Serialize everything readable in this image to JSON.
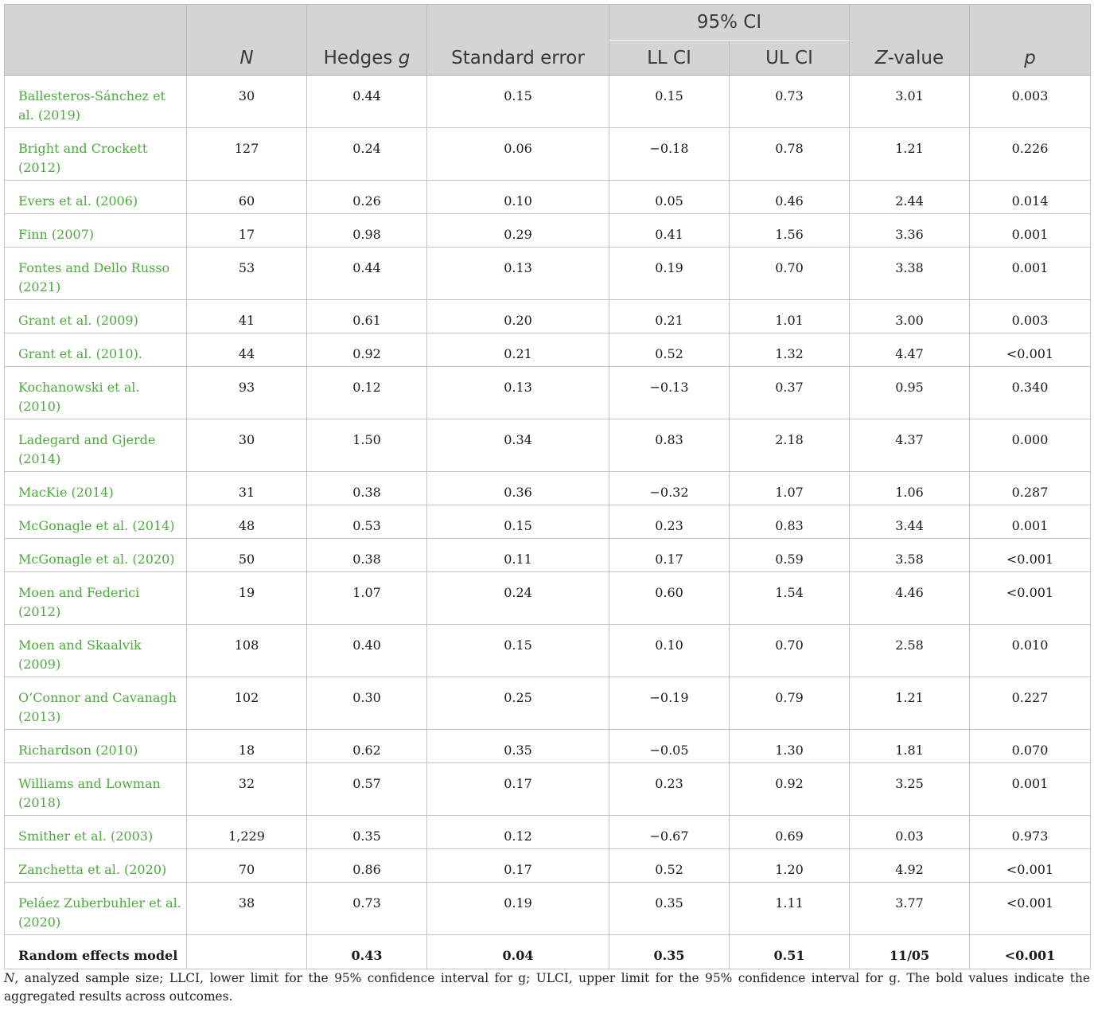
{
  "header": {
    "ci_group": "95% CI",
    "n": "N",
    "hedges_prefix": "Hedges ",
    "hedges_var": "g",
    "se": "Standard error",
    "ll": "LL CI",
    "ul": "UL CI",
    "z_var": "Z",
    "z_suffix": "-value",
    "p": "p"
  },
  "rows": [
    {
      "name_pre": "Ballesteros-Sánchez et al. (",
      "year": "2019",
      "name_post": ")",
      "n": "30",
      "g": "0.44",
      "se": "0.15",
      "ll": "0.15",
      "ul": "0.73",
      "z": "3.01",
      "p": "0.003"
    },
    {
      "name_pre": "Bright and Crockett (",
      "year": "2012",
      "name_post": ")",
      "n": "127",
      "g": "0.24",
      "se": "0.06",
      "ll": "−0.18",
      "ul": "0.78",
      "z": "1.21",
      "p": "0.226"
    },
    {
      "name_pre": "Evers et al. (",
      "year": "2006",
      "name_post": ")",
      "n": "60",
      "g": "0.26",
      "se": "0.10",
      "ll": "0.05",
      "ul": "0.46",
      "z": "2.44",
      "p": "0.014"
    },
    {
      "name_pre": "Finn (",
      "year": "2007",
      "name_post": ")",
      "n": "17",
      "g": "0.98",
      "se": "0.29",
      "ll": "0.41",
      "ul": "1.56",
      "z": "3.36",
      "p": "0.001"
    },
    {
      "name_pre": "Fontes and Dello Russo (",
      "year": "2021",
      "name_post": ")",
      "n": "53",
      "g": "0.44",
      "se": "0.13",
      "ll": "0.19",
      "ul": "0.70",
      "z": "3.38",
      "p": "0.001"
    },
    {
      "name_pre": "Grant et al. (",
      "year": "2009",
      "name_post": ")",
      "n": "41",
      "g": "0.61",
      "se": "0.20",
      "ll": "0.21",
      "ul": "1.01",
      "z": "3.00",
      "p": "0.003"
    },
    {
      "name_pre": "Grant et al. (",
      "year": "2010",
      "name_post": ").",
      "n": "44",
      "g": "0.92",
      "se": "0.21",
      "ll": "0.52",
      "ul": "1.32",
      "z": "4.47",
      "p": "<0.001"
    },
    {
      "name_pre": "Kochanowski et al. (",
      "year": "2010",
      "name_post": ")",
      "n": "93",
      "g": "0.12",
      "se": "0.13",
      "ll": "−0.13",
      "ul": "0.37",
      "z": "0.95",
      "p": "0.340"
    },
    {
      "name_pre": "Ladegard and Gjerde (",
      "year": "2014",
      "name_post": ")",
      "n": "30",
      "g": "1.50",
      "se": "0.34",
      "ll": "0.83",
      "ul": "2.18",
      "z": "4.37",
      "p": "0.000"
    },
    {
      "name_pre": "MacKie (",
      "year": "2014",
      "name_post": ")",
      "n": "31",
      "g": "0.38",
      "se": "0.36",
      "ll": "−0.32",
      "ul": "1.07",
      "z": "1.06",
      "p": "0.287"
    },
    {
      "name_pre": "McGonagle et al. (",
      "year": "2014",
      "name_post": ")",
      "n": "48",
      "g": "0.53",
      "se": "0.15",
      "ll": "0.23",
      "ul": "0.83",
      "z": "3.44",
      "p": "0.001"
    },
    {
      "name_pre": "McGonagle et al. (",
      "year": "2020",
      "name_post": ")",
      "n": "50",
      "g": "0.38",
      "se": "0.11",
      "ll": "0.17",
      "ul": "0.59",
      "z": "3.58",
      "p": "<0.001"
    },
    {
      "name_pre": "Moen and Federici (",
      "year": "2012",
      "name_post": ")",
      "n": "19",
      "g": "1.07",
      "se": "0.24",
      "ll": "0.60",
      "ul": "1.54",
      "z": "4.46",
      "p": "<0.001"
    },
    {
      "name_pre": "Moen and Skaalvik (",
      "year": "2009",
      "name_post": ")",
      "n": "108",
      "g": "0.40",
      "se": "0.15",
      "ll": "0.10",
      "ul": "0.70",
      "z": "2.58",
      "p": "0.010"
    },
    {
      "name_pre": "O’Connor and Cavanagh (",
      "year": "2013",
      "name_post": ")",
      "n": "102",
      "g": "0.30",
      "se": "0.25",
      "ll": "−0.19",
      "ul": "0.79",
      "z": "1.21",
      "p": "0.227"
    },
    {
      "name_pre": "Richardson (",
      "year": "2010",
      "name_post": ")",
      "n": "18",
      "g": "0.62",
      "se": "0.35",
      "ll": "−0.05",
      "ul": "1.30",
      "z": "1.81",
      "p": "0.070"
    },
    {
      "name_pre": "Williams and Lowman (",
      "year": "2018",
      "name_post": ")",
      "n": "32",
      "g": "0.57",
      "se": "0.17",
      "ll": "0.23",
      "ul": "0.92",
      "z": "3.25",
      "p": "0.001"
    },
    {
      "name_pre": "Smither et al. (",
      "year": "2003",
      "name_post": ")",
      "n": "1,229",
      "g": "0.35",
      "se": "0.12",
      "ll": "−0.67",
      "ul": "0.69",
      "z": "0.03",
      "p": "0.973"
    },
    {
      "name_pre": "Zanchetta et al. (",
      "year": "2020",
      "name_post": ")",
      "n": "70",
      "g": "0.86",
      "se": "0.17",
      "ll": "0.52",
      "ul": "1.20",
      "z": "4.92",
      "p": "<0.001"
    },
    {
      "name_pre": "Peláez Zuberbuhler et al. (",
      "year": "2020",
      "name_post": ")",
      "n": "38",
      "g": "0.73",
      "se": "0.19",
      "ll": "0.35",
      "ul": "1.11",
      "z": "3.77",
      "p": "<0.001"
    }
  ],
  "summary": {
    "name": "Random effects model",
    "n": "",
    "g": "0.43",
    "se": "0.04",
    "ll": "0.35",
    "ul": "0.51",
    "z": "11/05",
    "p": "<0.001"
  },
  "footnote": {
    "n_var": "N",
    "text": ", analyzed sample size; LLCI, lower limit for the 95% confidence interval for g; ULCI, upper limit for the 95% confidence interval for g. The bold values indicate the aggregated results across outcomes."
  },
  "colors": {
    "header_bg": "#d4d4d4",
    "link_green": "#4caa3c"
  }
}
